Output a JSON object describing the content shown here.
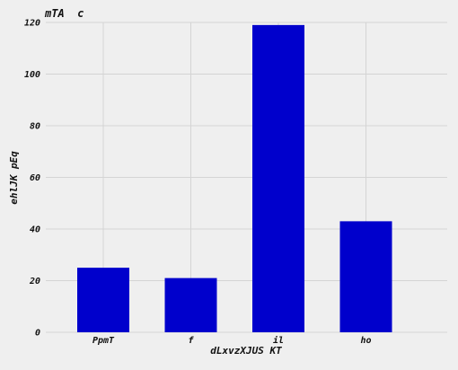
{
  "chart_data": {
    "type": "bar",
    "title": "mTA  c",
    "xlabel": "dLxvzXJUS KT",
    "ylabel": "ehlJK pEq",
    "categories": [
      "PpmT",
      "f",
      "il",
      "ho"
    ],
    "values": [
      25,
      21,
      119,
      43
    ],
    "ylim": [
      0,
      120
    ],
    "yticks": [
      0,
      20,
      40,
      60,
      80,
      100,
      120
    ],
    "grid": true,
    "bar_color": "#0000cc",
    "background_color": "#efefef",
    "grid_color": "#d4d4d4"
  }
}
